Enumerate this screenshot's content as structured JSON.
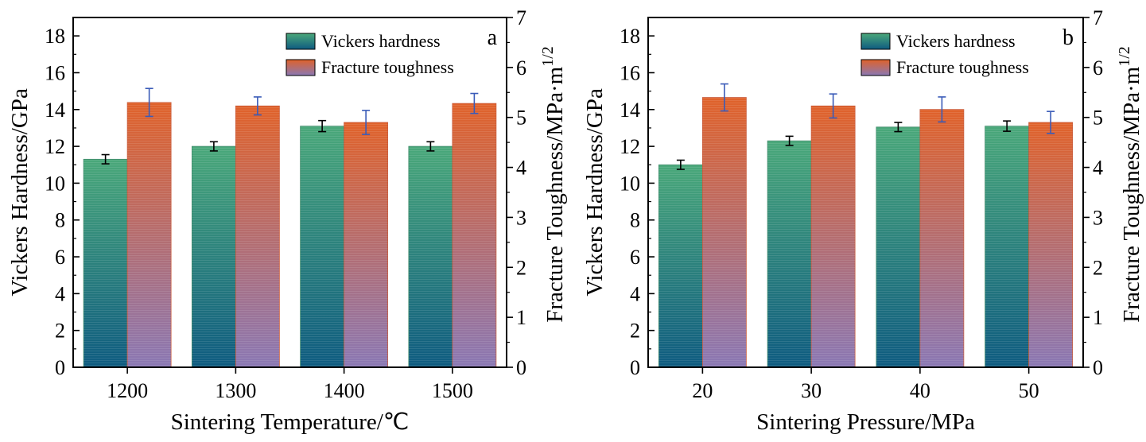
{
  "chart_data": [
    {
      "type": "bar",
      "panel_label": "a",
      "categories": [
        "1200",
        "1300",
        "1400",
        "1500"
      ],
      "xlabel": "Sintering Temperature/℃",
      "ylabel_left": "Vickers Hardness/GPa",
      "ylabel_right": "Fracture Toughness/MPa·m",
      "ylabel_right_sup": "1/2",
      "ylim_left": [
        0,
        19
      ],
      "yticks_left": [
        0,
        2,
        4,
        6,
        8,
        10,
        12,
        14,
        16,
        18
      ],
      "ylim_right": [
        0,
        7
      ],
      "yticks_right": [
        0,
        1,
        2,
        3,
        4,
        5,
        6,
        7
      ],
      "legend_position": "top-right",
      "series": [
        {
          "name": "Vickers hardness",
          "axis": "left",
          "values": [
            11.3,
            12.0,
            13.1,
            12.0
          ],
          "errors": [
            0.25,
            0.25,
            0.3,
            0.25
          ]
        },
        {
          "name": "Fracture toughness",
          "axis": "right",
          "values": [
            5.3,
            5.23,
            4.9,
            5.28
          ],
          "errors": [
            0.28,
            0.18,
            0.24,
            0.2
          ]
        }
      ]
    },
    {
      "type": "bar",
      "panel_label": "b",
      "categories": [
        "20",
        "30",
        "40",
        "50"
      ],
      "xlabel": "Sintering Pressure/MPa",
      "ylabel_left": "Vickers Hardness/GPa",
      "ylabel_right": "Fracture Toughness/MPa·m",
      "ylabel_right_sup": "1/2",
      "ylim_left": [
        0,
        19
      ],
      "yticks_left": [
        0,
        2,
        4,
        6,
        8,
        10,
        12,
        14,
        16,
        18
      ],
      "ylim_right": [
        0,
        7
      ],
      "yticks_right": [
        0,
        1,
        2,
        3,
        4,
        5,
        6,
        7
      ],
      "legend_position": "top-right",
      "series": [
        {
          "name": "Vickers hardness",
          "axis": "left",
          "values": [
            11.0,
            12.3,
            13.05,
            13.1
          ],
          "errors": [
            0.25,
            0.25,
            0.25,
            0.28
          ]
        },
        {
          "name": "Fracture toughness",
          "axis": "right",
          "values": [
            5.4,
            5.23,
            5.16,
            4.9
          ],
          "errors": [
            0.27,
            0.24,
            0.25,
            0.22
          ]
        }
      ]
    }
  ],
  "colors": {
    "hardness_top": "#4aa87a",
    "hardness_bottom": "#0e5b80",
    "toughness_top": "#e0622a",
    "toughness_bottom": "#8a78b4",
    "hardness_error": "#000000",
    "toughness_error": "#3a5bb8"
  }
}
